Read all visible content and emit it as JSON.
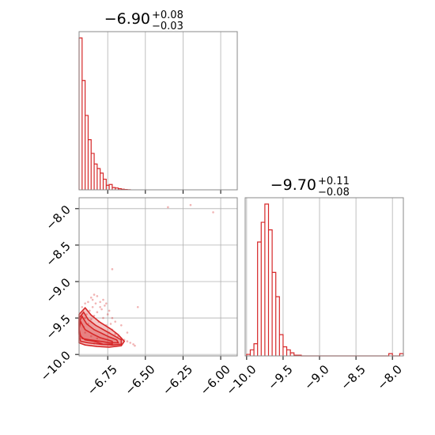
{
  "chart_data": [
    {
      "type": "histogram",
      "panel": "top-left",
      "title": {
        "main": "−6.90",
        "upper": "+0.08",
        "lower": "−0.03"
      },
      "xlim": [
        -6.94,
        -5.89
      ],
      "xticks": [
        -6.75,
        -6.5,
        -6.25,
        -6.0
      ],
      "show_tick_labels": false,
      "grid": true,
      "bins": [
        [
          -6.94,
          -6.92,
          1.0
        ],
        [
          -6.92,
          -6.9,
          0.72
        ],
        [
          -6.9,
          -6.88,
          0.49
        ],
        [
          -6.88,
          -6.86,
          0.33
        ],
        [
          -6.86,
          -6.84,
          0.24
        ],
        [
          -6.84,
          -6.82,
          0.17
        ],
        [
          -6.82,
          -6.8,
          0.14
        ],
        [
          -6.8,
          -6.78,
          0.11
        ],
        [
          -6.78,
          -6.76,
          0.07
        ],
        [
          -6.76,
          -6.74,
          0.03
        ],
        [
          -6.74,
          -6.72,
          0.035
        ],
        [
          -6.72,
          -6.7,
          0.015
        ],
        [
          -6.7,
          -6.68,
          0.012
        ],
        [
          -6.68,
          -6.66,
          0.007
        ],
        [
          -6.66,
          -6.64,
          0.004
        ],
        [
          -6.64,
          -6.62,
          0.002
        ],
        [
          -6.62,
          -6.6,
          0.001
        ]
      ],
      "color": "#d62728"
    },
    {
      "type": "scatter-contour",
      "panel": "bottom-left",
      "xlim": [
        -6.94,
        -5.89
      ],
      "ylim": [
        -10.02,
        -7.85
      ],
      "xticks": [
        -6.75,
        -6.5,
        -6.25,
        -6.0
      ],
      "xticklabels": [
        "−6.75",
        "−6.50",
        "−6.25",
        "−6.00"
      ],
      "yticks": [
        -8.0,
        -8.5,
        -9.0,
        -9.5,
        -10.0
      ],
      "yticklabels": [
        "−8.0",
        "−8.5",
        "−9.0",
        "−9.5",
        "−10.0"
      ],
      "grid": true,
      "points": [
        [
          -6.93,
          -9.55
        ],
        [
          -6.92,
          -9.48
        ],
        [
          -6.91,
          -9.62
        ],
        [
          -6.9,
          -9.5
        ],
        [
          -6.89,
          -9.45
        ],
        [
          -6.88,
          -9.58
        ],
        [
          -6.87,
          -9.4
        ],
        [
          -6.86,
          -9.52
        ],
        [
          -6.85,
          -9.35
        ],
        [
          -6.84,
          -9.47
        ],
        [
          -6.83,
          -9.3
        ],
        [
          -6.82,
          -9.42
        ],
        [
          -6.81,
          -9.55
        ],
        [
          -6.8,
          -9.28
        ],
        [
          -6.79,
          -9.38
        ],
        [
          -6.78,
          -9.5
        ],
        [
          -6.77,
          -9.33
        ],
        [
          -6.76,
          -9.6
        ],
        [
          -6.75,
          -9.45
        ],
        [
          -6.74,
          -9.7
        ],
        [
          -6.73,
          -9.58
        ],
        [
          -6.72,
          -9.66
        ],
        [
          -6.7,
          -9.72
        ],
        [
          -6.68,
          -9.75
        ],
        [
          -6.66,
          -9.78
        ],
        [
          -6.64,
          -9.8
        ],
        [
          -6.62,
          -9.82
        ],
        [
          -6.6,
          -9.84
        ],
        [
          -6.58,
          -9.86
        ],
        [
          -6.57,
          -9.88
        ],
        [
          -6.85,
          -9.25
        ],
        [
          -6.82,
          -9.2
        ],
        [
          -6.8,
          -9.35
        ],
        [
          -6.78,
          -9.25
        ],
        [
          -6.76,
          -9.3
        ],
        [
          -6.74,
          -9.4
        ],
        [
          -6.72,
          -9.5
        ],
        [
          -6.7,
          -9.55
        ],
        [
          -6.66,
          -9.6
        ],
        [
          -6.62,
          -9.7
        ],
        [
          -6.72,
          -8.83
        ],
        [
          -6.55,
          -9.35
        ],
        [
          -6.35,
          -7.98
        ],
        [
          -6.2,
          -7.95
        ],
        [
          -6.05,
          -8.05
        ],
        [
          -6.9,
          -9.7
        ],
        [
          -6.88,
          -9.8
        ],
        [
          -6.86,
          -9.75
        ],
        [
          -6.84,
          -9.85
        ],
        [
          -6.82,
          -9.78
        ],
        [
          -6.92,
          -9.35
        ],
        [
          -6.9,
          -9.3
        ],
        [
          -6.88,
          -9.28
        ],
        [
          -6.86,
          -9.22
        ],
        [
          -6.84,
          -9.18
        ]
      ],
      "contours": [
        [
          [
            -6.93,
            -9.55
          ],
          [
            -6.9,
            -9.66
          ],
          [
            -6.85,
            -9.72
          ],
          [
            -6.8,
            -9.77
          ],
          [
            -6.75,
            -9.8
          ],
          [
            -6.72,
            -9.82
          ],
          [
            -6.72,
            -9.86
          ],
          [
            -6.78,
            -9.86
          ],
          [
            -6.84,
            -9.82
          ],
          [
            -6.9,
            -9.8
          ],
          [
            -6.93,
            -9.75
          ],
          [
            -6.94,
            -9.65
          ],
          [
            -6.93,
            -9.55
          ]
        ],
        [
          [
            -6.92,
            -9.48
          ],
          [
            -6.89,
            -9.58
          ],
          [
            -6.84,
            -9.66
          ],
          [
            -6.78,
            -9.72
          ],
          [
            -6.74,
            -9.76
          ],
          [
            -6.69,
            -9.8
          ],
          [
            -6.68,
            -9.84
          ],
          [
            -6.74,
            -9.84
          ],
          [
            -6.8,
            -9.82
          ],
          [
            -6.87,
            -9.8
          ],
          [
            -6.92,
            -9.78
          ],
          [
            -6.94,
            -9.7
          ],
          [
            -6.94,
            -9.55
          ],
          [
            -6.92,
            -9.48
          ]
        ],
        [
          [
            -6.91,
            -9.42
          ],
          [
            -6.88,
            -9.52
          ],
          [
            -6.83,
            -9.6
          ],
          [
            -6.77,
            -9.67
          ],
          [
            -6.71,
            -9.74
          ],
          [
            -6.66,
            -9.8
          ],
          [
            -6.66,
            -9.86
          ],
          [
            -6.72,
            -9.87
          ],
          [
            -6.8,
            -9.86
          ],
          [
            -6.88,
            -9.84
          ],
          [
            -6.93,
            -9.82
          ],
          [
            -6.94,
            -9.72
          ],
          [
            -6.94,
            -9.5
          ],
          [
            -6.91,
            -9.42
          ]
        ],
        [
          [
            -6.9,
            -9.36
          ],
          [
            -6.86,
            -9.46
          ],
          [
            -6.8,
            -9.56
          ],
          [
            -6.73,
            -9.65
          ],
          [
            -6.68,
            -9.73
          ],
          [
            -6.64,
            -9.82
          ],
          [
            -6.66,
            -9.88
          ],
          [
            -6.74,
            -9.9
          ],
          [
            -6.82,
            -9.89
          ],
          [
            -6.9,
            -9.87
          ],
          [
            -6.94,
            -9.84
          ],
          [
            -6.94,
            -9.45
          ],
          [
            -6.9,
            -9.36
          ]
        ]
      ],
      "color": "#d62728"
    },
    {
      "type": "histogram",
      "panel": "bottom-right",
      "title": {
        "main": "−9.70",
        "upper": "+0.11",
        "lower": "−0.08"
      },
      "xlim": [
        -10.02,
        -7.85
      ],
      "xticks": [
        -10.0,
        -9.5,
        -9.0,
        -8.5,
        -8.0
      ],
      "xticklabels": [
        "−10.0",
        "−9.5",
        "−9.0",
        "−8.5",
        "−8.0"
      ],
      "grid": true,
      "bins": [
        [
          -10.0,
          -9.95,
          0.01
        ],
        [
          -9.95,
          -9.9,
          0.04
        ],
        [
          -9.9,
          -9.85,
          0.08
        ],
        [
          -9.85,
          -9.8,
          0.75
        ],
        [
          -9.8,
          -9.75,
          0.88
        ],
        [
          -9.75,
          -9.7,
          1.0
        ],
        [
          -9.7,
          -9.65,
          0.83
        ],
        [
          -9.65,
          -9.6,
          0.55
        ],
        [
          -9.6,
          -9.55,
          0.39
        ],
        [
          -9.55,
          -9.5,
          0.14
        ],
        [
          -9.5,
          -9.45,
          0.06
        ],
        [
          -9.45,
          -9.4,
          0.04
        ],
        [
          -9.4,
          -9.35,
          0.02
        ],
        [
          -9.35,
          -9.3,
          0.005
        ],
        [
          -9.3,
          -9.25,
          0.005
        ],
        [
          -8.05,
          -8.0,
          0.015
        ],
        [
          -7.9,
          -7.85,
          0.015
        ]
      ],
      "color": "#d62728"
    }
  ]
}
